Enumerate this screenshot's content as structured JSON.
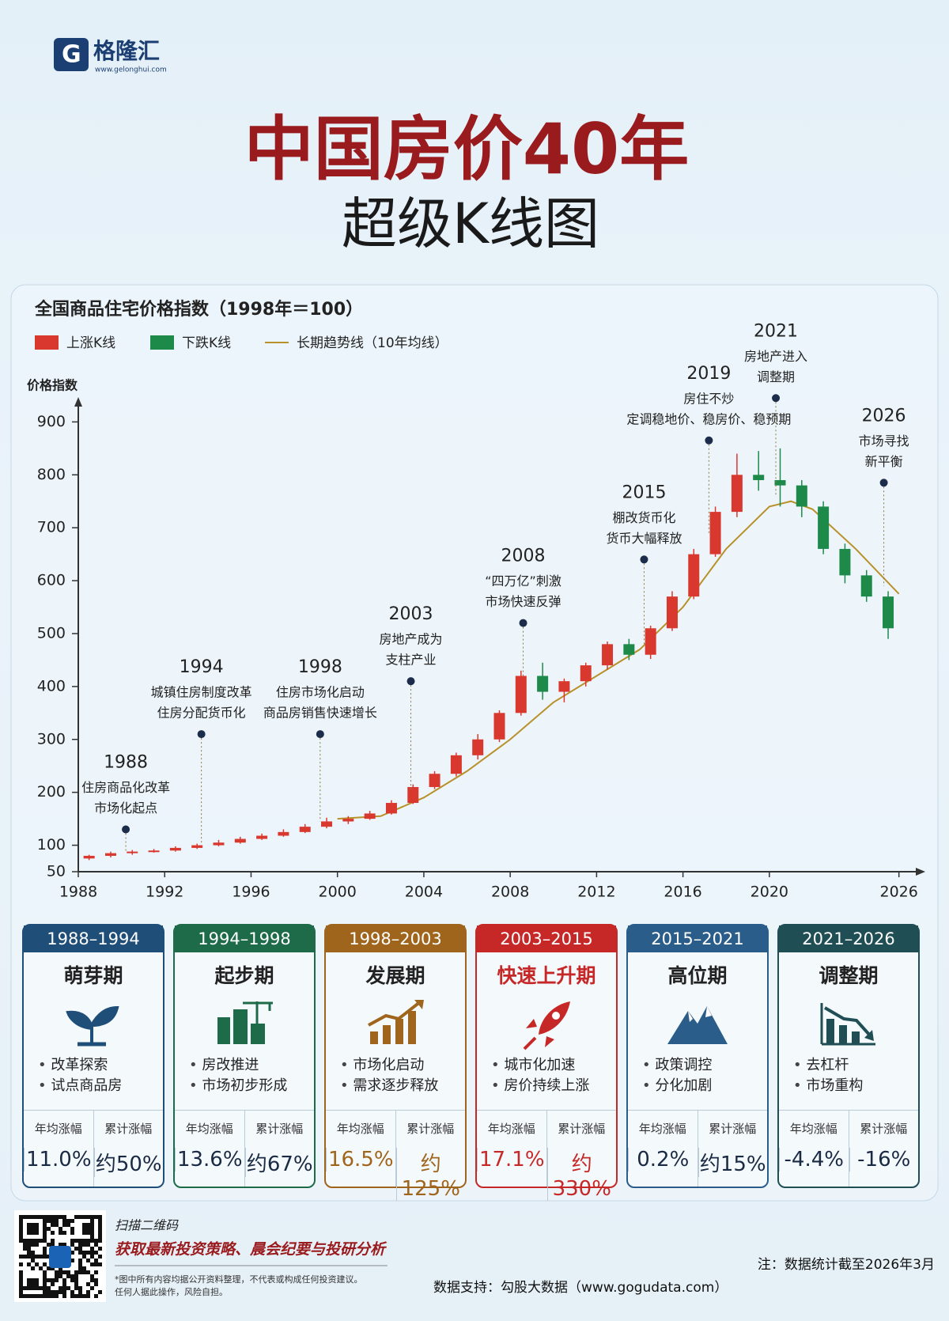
{
  "header": {
    "logo": "格隆汇",
    "site": "www.gelonghui.com",
    "title": "中国房价40年",
    "subtitle": "超级K线图"
  },
  "chart_data": {
    "type": "candlestick",
    "title": "全国商品住宅价格指数（1998年＝100）",
    "y_label": "价格指数",
    "legend": [
      {
        "name": "上涨K线",
        "color": "#d9382f"
      },
      {
        "name": "下跌K线",
        "color": "#1d8a4a"
      },
      {
        "name": "长期趋势线（10年均线）",
        "color": "#b8912a"
      }
    ],
    "candles": {
      "x": [
        1988,
        1989,
        1990,
        1991,
        1992,
        1993,
        1994,
        1995,
        1996,
        1997,
        1998,
        1999,
        2000,
        2001,
        2002,
        2003,
        2004,
        2005,
        2006,
        2007,
        2008,
        2009,
        2010,
        2011,
        2012,
        2013,
        2014,
        2015,
        2016,
        2017,
        2018,
        2019,
        2020,
        2021,
        2022,
        2023,
        2024,
        2025
      ],
      "open": [
        75,
        80,
        85,
        88,
        90,
        95,
        100,
        105,
        112,
        118,
        125,
        135,
        145,
        150,
        160,
        180,
        210,
        235,
        270,
        300,
        350,
        420,
        390,
        410,
        440,
        480,
        460,
        510,
        570,
        650,
        730,
        800,
        790,
        780,
        740,
        660,
        610,
        570
      ],
      "high": [
        82,
        88,
        91,
        93,
        98,
        103,
        110,
        116,
        122,
        130,
        140,
        152,
        155,
        165,
        185,
        215,
        240,
        275,
        310,
        355,
        430,
        445,
        415,
        445,
        485,
        490,
        515,
        580,
        660,
        740,
        840,
        845,
        850,
        790,
        750,
        670,
        620,
        580
      ],
      "low": [
        72,
        77,
        82,
        86,
        88,
        93,
        98,
        103,
        110,
        116,
        123,
        132,
        140,
        148,
        158,
        178,
        206,
        230,
        262,
        295,
        345,
        375,
        370,
        400,
        432,
        450,
        452,
        505,
        565,
        645,
        720,
        770,
        740,
        720,
        650,
        595,
        560,
        490
      ],
      "close": [
        80,
        85,
        88,
        90,
        95,
        100,
        105,
        112,
        118,
        125,
        135,
        145,
        150,
        160,
        180,
        210,
        235,
        270,
        300,
        350,
        420,
        390,
        410,
        440,
        480,
        460,
        510,
        570,
        650,
        730,
        800,
        790,
        780,
        740,
        660,
        610,
        570,
        510
      ]
    },
    "trend": {
      "x": [
        2000,
        2002,
        2004,
        2006,
        2008,
        2010,
        2012,
        2014,
        2016,
        2018,
        2020,
        2021,
        2022,
        2024,
        2026
      ],
      "values": [
        150,
        155,
        190,
        240,
        300,
        370,
        420,
        470,
        550,
        660,
        740,
        750,
        735,
        660,
        575
      ]
    },
    "xlim": [
      1988,
      2027
    ],
    "xticks": [
      1988,
      1992,
      1996,
      2000,
      2004,
      2008,
      2012,
      2016,
      2020,
      2026
    ],
    "ylim": [
      50,
      920
    ],
    "yticks": [
      50,
      100,
      200,
      300,
      400,
      500,
      600,
      700,
      800,
      900
    ],
    "annotations": [
      {
        "year": "1988",
        "lines": [
          "住房商品化改革",
          "市场化起点"
        ]
      },
      {
        "year": "1994",
        "lines": [
          "城镇住房制度改革",
          "住房分配货币化"
        ]
      },
      {
        "year": "1998",
        "lines": [
          "住房市场化启动",
          "商品房销售快速增长"
        ]
      },
      {
        "year": "2003",
        "lines": [
          "房地产成为",
          "支柱产业"
        ]
      },
      {
        "year": "2008",
        "lines": [
          "“四万亿”刺激",
          "市场快速反弹"
        ]
      },
      {
        "year": "2015",
        "lines": [
          "棚改货币化",
          "货币大幅释放"
        ]
      },
      {
        "year": "2019",
        "lines": [
          "房住不炒",
          "定调稳地价、稳房价、稳预期"
        ]
      },
      {
        "year": "2021",
        "lines": [
          "房地产进入",
          "调整期"
        ]
      },
      {
        "year": "2026",
        "lines": [
          "市场寻找",
          "新平衡"
        ]
      }
    ]
  },
  "phases": {
    "stat_labels": [
      "年均涨幅",
      "累计涨幅"
    ],
    "items": [
      {
        "period": "1988–1994",
        "name": "萌芽期",
        "bullets": [
          "改革探索",
          "试点商品房"
        ],
        "stats": [
          "11.0%",
          "约50%"
        ]
      },
      {
        "period": "1994–1998",
        "name": "起步期",
        "bullets": [
          "房改推进",
          "市场初步形成"
        ],
        "stats": [
          "13.6%",
          "约67%"
        ]
      },
      {
        "period": "1998–2003",
        "name": "发展期",
        "bullets": [
          "市场化启动",
          "需求逐步释放"
        ],
        "stats": [
          "16.5%",
          "约125%"
        ]
      },
      {
        "period": "2003–2015",
        "name": "快速上升期",
        "bullets": [
          "城市化加速",
          "房价持续上涨"
        ],
        "stats": [
          "17.1%",
          "约330%"
        ]
      },
      {
        "period": "2015–2021",
        "name": "高位期",
        "bullets": [
          "政策调控",
          "分化加剧"
        ],
        "stats": [
          "0.2%",
          "约15%"
        ]
      },
      {
        "period": "2021–2026",
        "name": "调整期",
        "bullets": [
          "去杠杆",
          "市场重构"
        ],
        "stats": [
          "-4.4%",
          "-16%"
        ]
      }
    ]
  },
  "footer": {
    "scan": "扫描二维码",
    "promo": "获取最新投资策略、晨会纪要与投研分析",
    "disclaimer": [
      "*图中所有内容均据公开资料整理，不代表或构成任何投资建议。",
      "任何人据此操作，风险自担。"
    ],
    "note": "注：数据统计截至2026年3月",
    "source": "数据支持：勾股大数据（www.gogudata.com）"
  }
}
